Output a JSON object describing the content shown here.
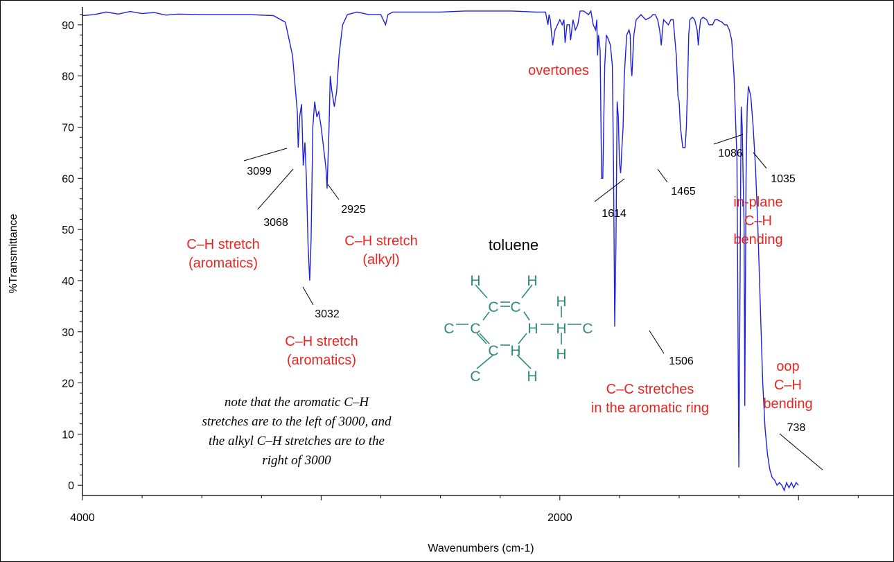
{
  "chart_data": {
    "type": "line",
    "xlabel": "Wavenumbers (cm-1)",
    "ylabel": "%Transmittance",
    "xlim": [
      4000,
      600
    ],
    "ylim": [
      -2,
      93.5
    ],
    "xticks": [
      4000,
      2000
    ],
    "yticks": [
      0,
      10,
      20,
      30,
      40,
      50,
      60,
      70,
      80,
      90
    ],
    "grid": false,
    "series": [
      {
        "name": "",
        "color": "#1f1fdc",
        "points": [
          [
            4000,
            91.8
          ],
          [
            3950,
            92
          ],
          [
            3900,
            92.5
          ],
          [
            3850,
            92.1
          ],
          [
            3800,
            92.6
          ],
          [
            3750,
            92.2
          ],
          [
            3700,
            92.4
          ],
          [
            3650,
            91.9
          ],
          [
            3600,
            92.1
          ],
          [
            3500,
            92
          ],
          [
            3400,
            92
          ],
          [
            3300,
            92
          ],
          [
            3200,
            91.8
          ],
          [
            3150,
            90.5
          ],
          [
            3120,
            84
          ],
          [
            3100,
            73
          ],
          [
            3096,
            66
          ],
          [
            3090,
            72
          ],
          [
            3082,
            74.5
          ],
          [
            3075,
            62.5
          ],
          [
            3068,
            67
          ],
          [
            3062,
            60
          ],
          [
            3055,
            47
          ],
          [
            3048,
            40
          ],
          [
            3042,
            48
          ],
          [
            3035,
            70
          ],
          [
            3027,
            75
          ],
          [
            3018,
            72
          ],
          [
            3010,
            73
          ],
          [
            3000,
            70
          ],
          [
            2990,
            66
          ],
          [
            2980,
            62
          ],
          [
            2975,
            58
          ],
          [
            2967,
            70
          ],
          [
            2962,
            80
          ],
          [
            2955,
            77
          ],
          [
            2945,
            74
          ],
          [
            2935,
            77
          ],
          [
            2925,
            84
          ],
          [
            2910,
            90
          ],
          [
            2890,
            92
          ],
          [
            2850,
            92.5
          ],
          [
            2800,
            92
          ],
          [
            2750,
            92
          ],
          [
            2730,
            90
          ],
          [
            2720,
            92
          ],
          [
            2700,
            92.5
          ],
          [
            2600,
            92.5
          ],
          [
            2500,
            92.5
          ],
          [
            2400,
            92.7
          ],
          [
            2300,
            92.7
          ],
          [
            2200,
            92.7
          ],
          [
            2100,
            92.5
          ],
          [
            2060,
            92.5
          ],
          [
            2050,
            90
          ],
          [
            2045,
            92
          ],
          [
            2040,
            91
          ],
          [
            2030,
            86
          ],
          [
            2020,
            89
          ],
          [
            2000,
            91
          ],
          [
            1990,
            90
          ],
          [
            1983,
            91
          ],
          [
            1978,
            86.5
          ],
          [
            1970,
            90
          ],
          [
            1960,
            90
          ],
          [
            1955,
            87
          ],
          [
            1945,
            91
          ],
          [
            1935,
            89
          ],
          [
            1925,
            90
          ],
          [
            1915,
            92.7
          ],
          [
            1900,
            92.7
          ],
          [
            1880,
            92
          ],
          [
            1870,
            92.7
          ],
          [
            1860,
            90
          ],
          [
            1850,
            89
          ],
          [
            1845,
            91
          ],
          [
            1842,
            84
          ],
          [
            1838,
            88
          ],
          [
            1831,
            85
          ],
          [
            1825,
            60
          ],
          [
            1820,
            60
          ],
          [
            1812,
            82
          ],
          [
            1805,
            88
          ],
          [
            1795,
            87
          ],
          [
            1788,
            86
          ],
          [
            1780,
            82
          ],
          [
            1775,
            62
          ],
          [
            1770,
            31
          ],
          [
            1765,
            47
          ],
          [
            1760,
            75
          ],
          [
            1755,
            72
          ],
          [
            1750,
            63
          ],
          [
            1745,
            61
          ],
          [
            1740,
            66
          ],
          [
            1735,
            70
          ],
          [
            1730,
            80
          ],
          [
            1720,
            88
          ],
          [
            1710,
            89
          ],
          [
            1705,
            88
          ],
          [
            1702,
            82
          ],
          [
            1698,
            80
          ],
          [
            1690,
            88
          ],
          [
            1680,
            91
          ],
          [
            1660,
            92
          ],
          [
            1640,
            91
          ],
          [
            1620,
            91.5
          ],
          [
            1610,
            92
          ],
          [
            1600,
            92
          ],
          [
            1590,
            91
          ],
          [
            1582,
            89
          ],
          [
            1575,
            86
          ],
          [
            1570,
            89
          ],
          [
            1565,
            91
          ],
          [
            1545,
            90
          ],
          [
            1535,
            91
          ],
          [
            1525,
            91
          ],
          [
            1512,
            84
          ],
          [
            1505,
            76
          ],
          [
            1500,
            75
          ],
          [
            1495,
            70
          ],
          [
            1485,
            66
          ],
          [
            1475,
            66
          ],
          [
            1470,
            70
          ],
          [
            1465,
            78
          ],
          [
            1460,
            88
          ],
          [
            1455,
            91
          ],
          [
            1445,
            91.5
          ],
          [
            1435,
            91
          ],
          [
            1425,
            89
          ],
          [
            1420,
            86
          ],
          [
            1415,
            89
          ],
          [
            1410,
            91
          ],
          [
            1400,
            91.5
          ],
          [
            1385,
            91
          ],
          [
            1375,
            90
          ],
          [
            1360,
            90
          ],
          [
            1350,
            91
          ],
          [
            1340,
            91
          ],
          [
            1320,
            90.5
          ],
          [
            1310,
            90
          ],
          [
            1300,
            90
          ],
          [
            1290,
            89
          ],
          [
            1280,
            87
          ],
          [
            1270,
            80
          ],
          [
            1262,
            69
          ],
          [
            1258,
            64
          ],
          [
            1250,
            3.5
          ],
          [
            1245,
            40
          ],
          [
            1242,
            63
          ],
          [
            1240,
            74
          ],
          [
            1236,
            70
          ],
          [
            1232,
            60
          ],
          [
            1228,
            51
          ],
          [
            1225,
            15.5
          ],
          [
            1220,
            60
          ],
          [
            1215,
            74
          ],
          [
            1210,
            78
          ],
          [
            1200,
            76
          ],
          [
            1190,
            70
          ],
          [
            1180,
            62
          ],
          [
            1170,
            50
          ],
          [
            1160,
            35
          ],
          [
            1150,
            20
          ],
          [
            1140,
            11
          ],
          [
            1130,
            6
          ],
          [
            1120,
            3
          ],
          [
            1110,
            1.5
          ],
          [
            1100,
            1
          ],
          [
            1090,
            0
          ],
          [
            1080,
            0.5
          ],
          [
            1070,
            0
          ],
          [
            1060,
            -1
          ],
          [
            1050,
            0.5
          ],
          [
            1040,
            -0.5
          ],
          [
            1030,
            0.5
          ],
          [
            1020,
            -0.5
          ],
          [
            1010,
            0.5
          ],
          [
            1000,
            0
          ]
        ]
      }
    ],
    "peak_labels": [
      "3099",
      "3068",
      "2925",
      "3032",
      "1614",
      "1465",
      "1086",
      "1035",
      "1506",
      "738"
    ],
    "annotations": [
      {
        "lines": [
          "C–H stretch",
          "(aromatics)"
        ]
      },
      {
        "lines": [
          "C–H stretch",
          "(alkyl)"
        ]
      },
      {
        "lines": [
          "C–H stretch",
          "(aromatics)"
        ]
      },
      {
        "lines": [
          "overtones"
        ]
      },
      {
        "lines": [
          "in-plane",
          "C–H",
          "bending"
        ]
      },
      {
        "lines": [
          "C–C stretches",
          "in the aromatic ring"
        ]
      },
      {
        "lines": [
          "oop",
          "C–H",
          "bending"
        ]
      }
    ],
    "molecule": {
      "name": "toluene",
      "color": "#2e8b78",
      "atoms": [
        "H",
        "H",
        "C",
        "C",
        "H",
        "C",
        "C",
        "H",
        "H",
        "C",
        "C",
        "H",
        "H",
        "C",
        "H",
        "H",
        "H"
      ]
    },
    "note": [
      "note that the aromatic C–H",
      "stretches are to the left of 3000, and",
      "the alkyl C–H stretches are to the",
      "right of 3000"
    ]
  }
}
